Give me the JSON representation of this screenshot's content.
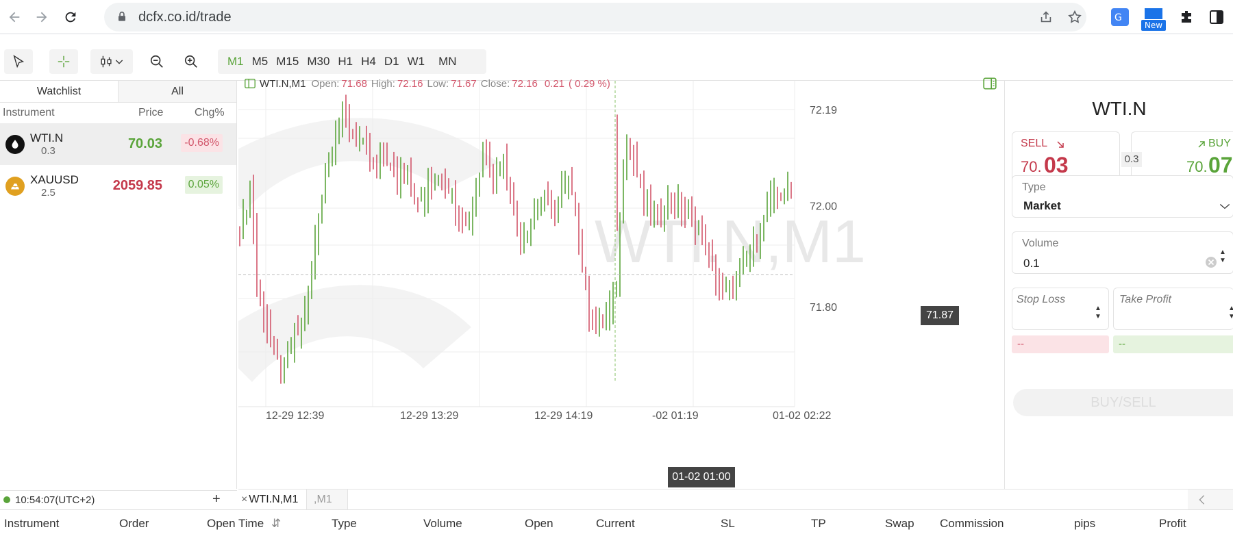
{
  "browser": {
    "url": "dcfx.co.id/trade",
    "ext_new_badge": "New"
  },
  "toolbar": {
    "timeframes": [
      "M1",
      "M5",
      "M15",
      "M30",
      "H1",
      "H4",
      "D1",
      "W1",
      "MN"
    ],
    "active_timeframe": "M1"
  },
  "watchlist": {
    "tabs": [
      "Watchlist",
      "All"
    ],
    "headers": {
      "instrument": "Instrument",
      "price": "Price",
      "chg": "Chg%"
    },
    "rows": [
      {
        "name": "WTI.N",
        "sub": "0.3",
        "price": "70.03",
        "chg": "-0.68%",
        "price_color": "#5aa43a",
        "chg_type": "down"
      },
      {
        "name": "XAUUSD",
        "sub": "2.5",
        "price": "2059.85",
        "chg": "0.05%",
        "price_color": "#c4394b",
        "chg_type": "up"
      }
    ],
    "clock": "10:54:07(UTC+2)",
    "add": "+"
  },
  "chart": {
    "symbol": "WTI.N,M1",
    "open_label": "Open:",
    "open": "71.68",
    "high_label": "High:",
    "high": "72.16",
    "low_label": "Low:",
    "low": "71.67",
    "close_label": "Close:",
    "close": "72.16",
    "change": "0.21",
    "change_pct": "( 0.29 %)",
    "watermark": "WTI.N,M1",
    "current_price": "71.87",
    "crosshair_time": "01-02 01:00",
    "y_ticks": [
      "72.19",
      "72.00",
      "71.80"
    ],
    "x_ticks": [
      "12-29 12:39",
      "12-29 13:29",
      "12-29 14:19",
      "-02 01:19",
      "01-02 02:22"
    ]
  },
  "chart_data": {
    "type": "candlestick",
    "title": "WTI.N,M1",
    "ylim": [
      71.65,
      72.28
    ],
    "y_ticks": [
      72.19,
      72.0,
      71.8
    ],
    "x_ticks": [
      "12-29 12:39",
      "12-29 13:29",
      "12-29 14:19",
      "-02 01:19",
      "01-02 02:22"
    ],
    "last_bar": {
      "open": 71.68,
      "high": 72.16,
      "low": 71.67,
      "close": 72.16
    },
    "current_price": 71.87,
    "up_color": "#5aa43a",
    "down_color": "#d2566b"
  },
  "order_panel": {
    "symbol": "WTI.N",
    "sell_label": "SELL",
    "sell_int": "70.",
    "sell_dec": "03",
    "spread": "0.3",
    "buy_label": "BUY",
    "buy_int": "70.",
    "buy_dec": "07",
    "type_label": "Type",
    "type_value": "Market",
    "volume_label": "Volume",
    "volume_value": "0.1",
    "sl_label": "Stop Loss",
    "tp_label": "Take Profit",
    "sl_value": "--",
    "tp_value": "--",
    "submit": "BUY/SELL"
  },
  "bottom": {
    "tabs": [
      "WTI.N,M1",
      ",M1"
    ],
    "columns": [
      "Instrument",
      "Order",
      "Open Time",
      "Type",
      "Volume",
      "Open",
      "Current",
      "SL",
      "TP",
      "Swap",
      "Commission",
      "pips",
      "Profit"
    ]
  }
}
